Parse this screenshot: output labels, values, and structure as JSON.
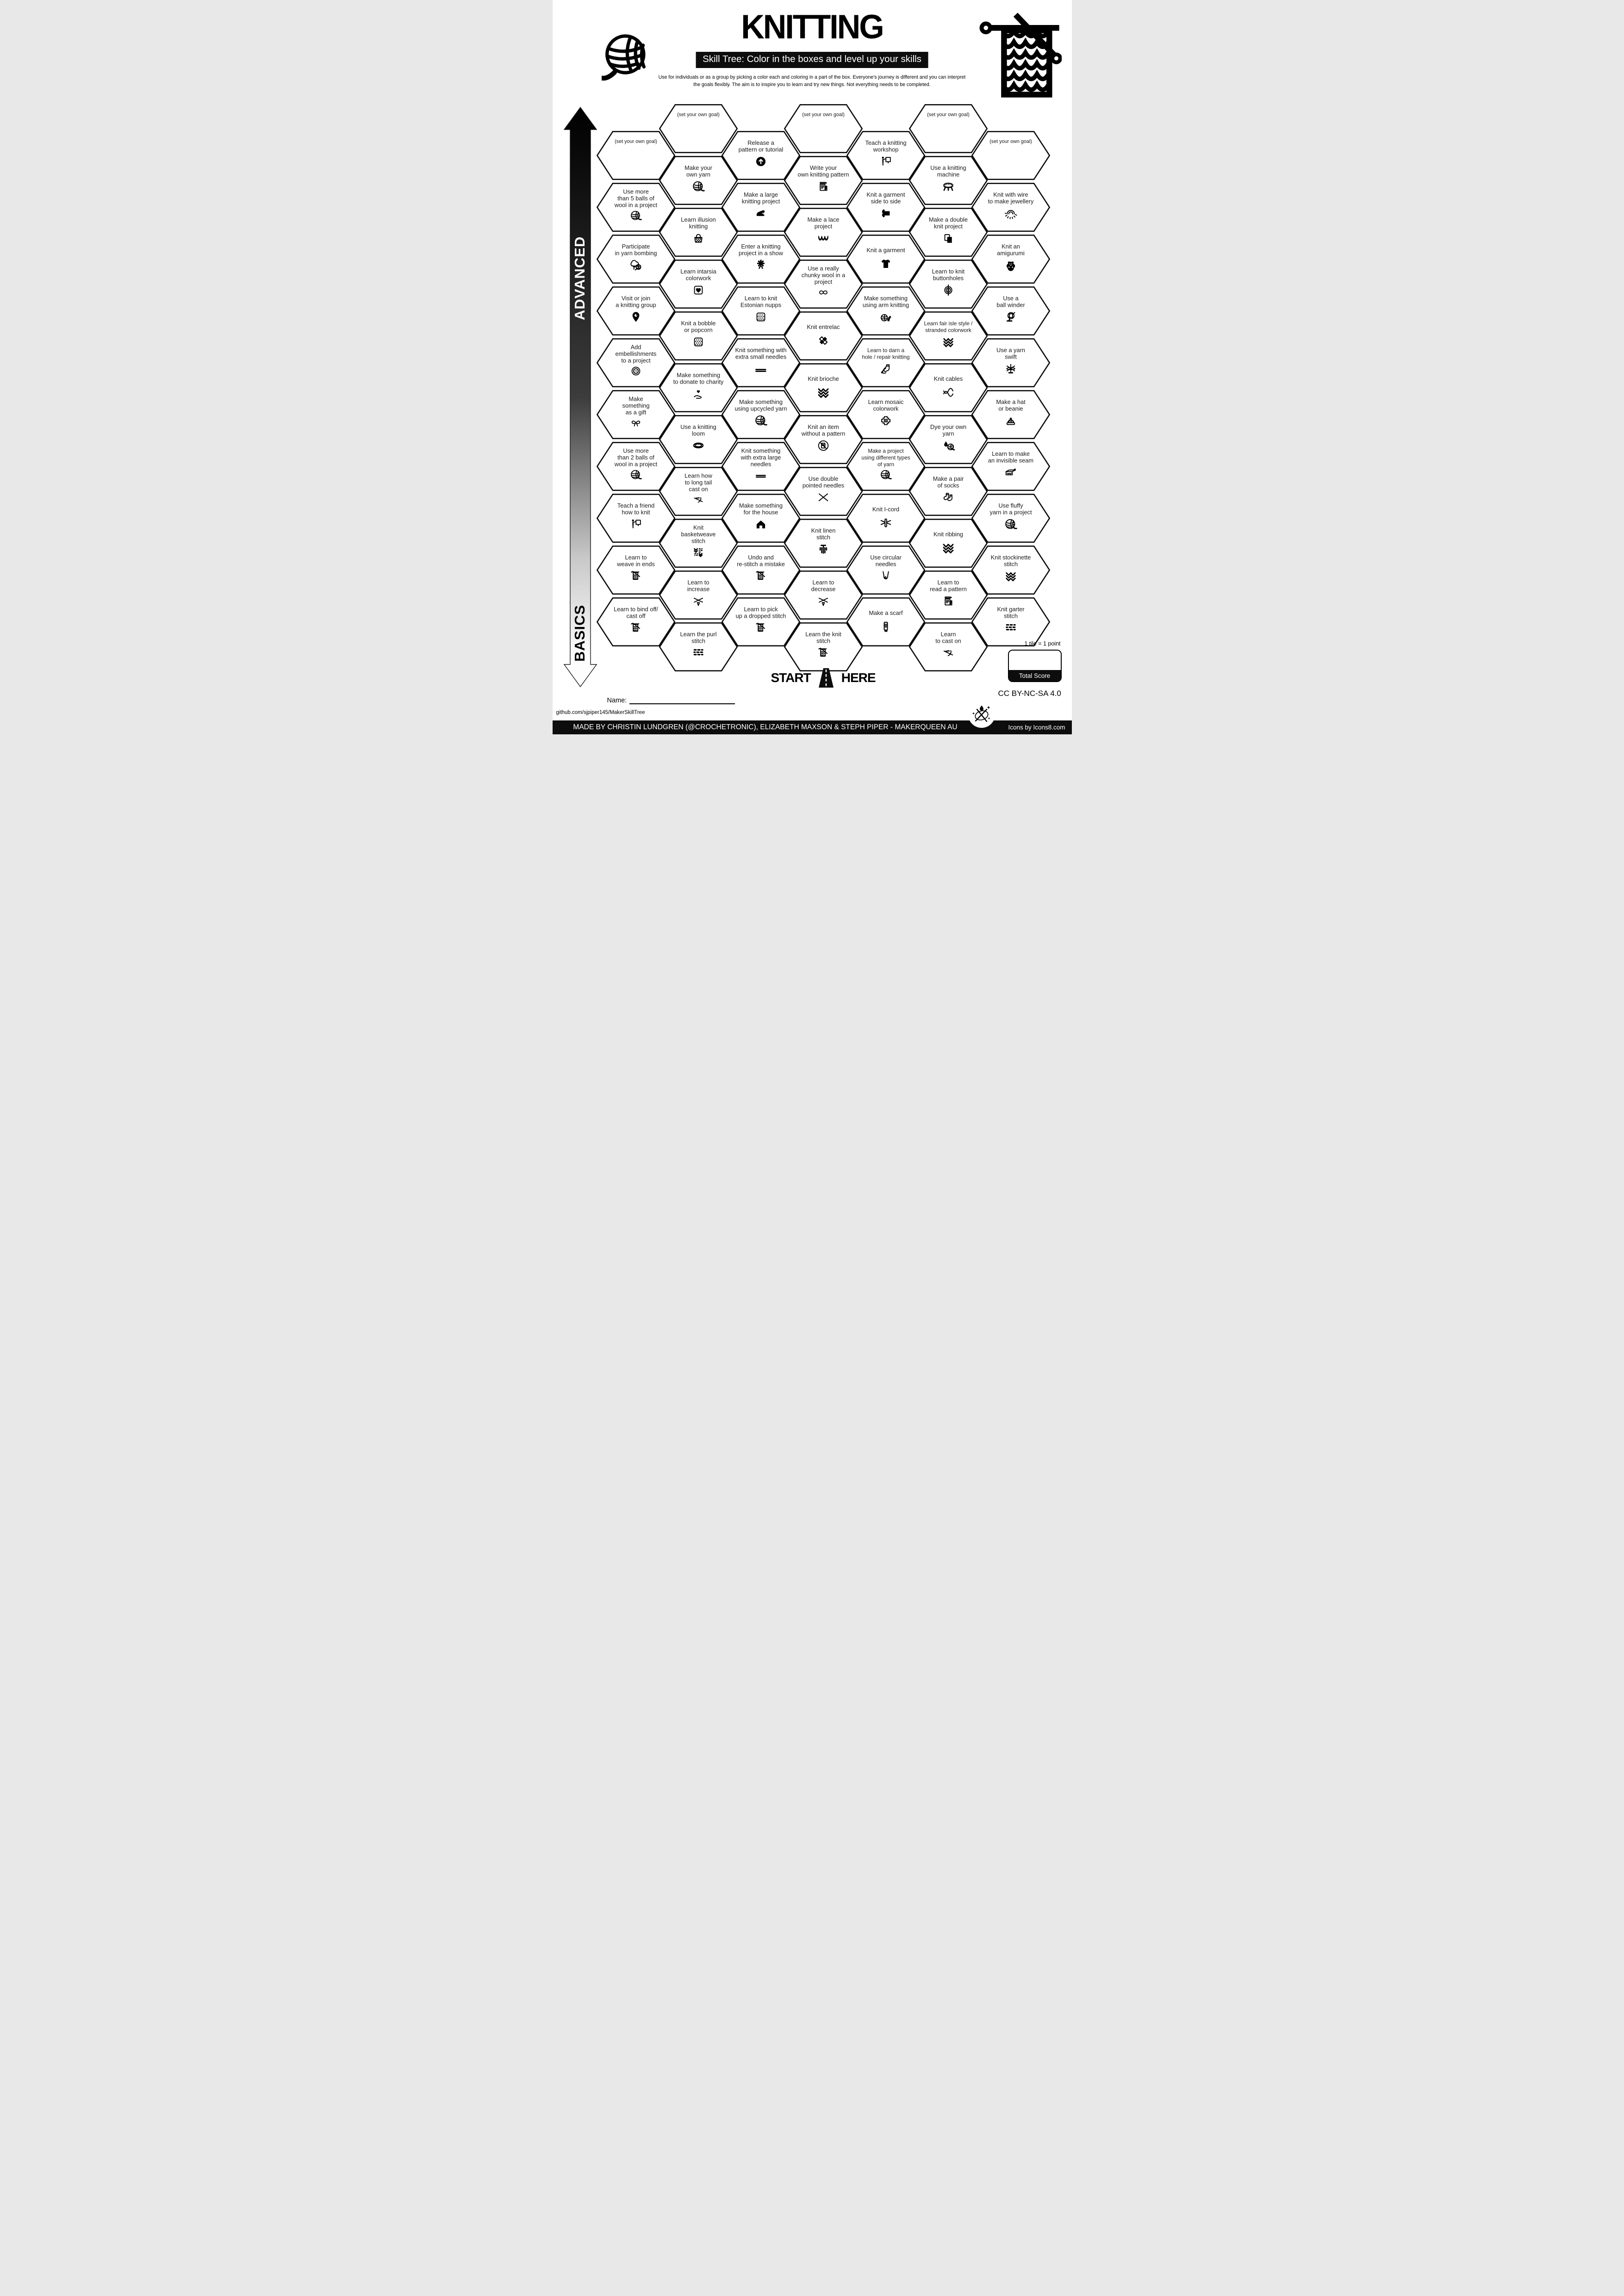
{
  "title": "KNITTING",
  "subtitle": "Skill Tree:  Color in the boxes and level up your skills",
  "description": "Use for individuals or as a group by picking a color each and coloring in a part of the box.  Everyone's journey is different and you can interpret the goals flexibly.  The aim is to inspire you to learn and try new things. Not everything needs to be completed.",
  "axis": {
    "advanced_label": "ADVANCED",
    "basics_label": "BASICS"
  },
  "start_here": {
    "start": "START",
    "here": "HERE"
  },
  "name_label": "Name:",
  "github_url": "github.com/sjpiper145/MakerSkillTree",
  "footer_credit": "MADE BY CHRISTIN LUNDGREN (@CROCHETRONIC), ELIZABETH MAXSON & STEPH PIPER  -  MAKERQUEEN AU",
  "icons_credit": "Icons by Icons8.com",
  "license": "CC BY-NC-SA 4.0",
  "scoring": {
    "tile_note": "1 tile = 1 point",
    "total_label": "Total Score"
  },
  "colors": {
    "ink": "#000000",
    "paper": "#ffffff"
  },
  "hexagons": [
    {
      "col": 0,
      "row": 0,
      "goal": true,
      "label": "(set your own goal)",
      "icon": null
    },
    {
      "col": 0,
      "row": 1,
      "label": "Use more\nthan 5 balls of\nwool in a project",
      "icon": "yarn-ball"
    },
    {
      "col": 0,
      "row": 2,
      "label": "Participate\nin yarn bombing",
      "icon": "tree-yarn"
    },
    {
      "col": 0,
      "row": 3,
      "label": "Visit or join\na knitting group",
      "icon": "map-pin"
    },
    {
      "col": 0,
      "row": 4,
      "label": "Add\nembellishments\nto a project",
      "icon": "button"
    },
    {
      "col": 0,
      "row": 5,
      "label": "Make\nsomething\nas a gift",
      "icon": "gift-bow"
    },
    {
      "col": 0,
      "row": 6,
      "label": "Use more\nthan 2 balls of\nwool in a project",
      "icon": "yarn-ball"
    },
    {
      "col": 0,
      "row": 7,
      "label": "Teach a friend\nhow to knit",
      "icon": "person-board"
    },
    {
      "col": 0,
      "row": 8,
      "label": "Learn to\nweave in ends",
      "icon": "swatch-needle"
    },
    {
      "col": 0,
      "row": 9,
      "label": "Learn to bind off/\ncast off",
      "icon": "swatch-needle"
    },
    {
      "col": 1,
      "row": 0,
      "goal": true,
      "label": "(set your own goal)",
      "icon": null
    },
    {
      "col": 1,
      "row": 1,
      "label": "Make your\nown yarn",
      "icon": "yarn-ball"
    },
    {
      "col": 1,
      "row": 2,
      "label": "Learn illusion\nknitting",
      "icon": "basket"
    },
    {
      "col": 1,
      "row": 3,
      "label": "Learn intarsia\ncolorwork",
      "icon": "heart-square"
    },
    {
      "col": 1,
      "row": 4,
      "label": "Knit a bobble\nor popcorn",
      "icon": "dots-square"
    },
    {
      "col": 1,
      "row": 5,
      "label": "Make something\nto donate to charity",
      "icon": "hand-heart"
    },
    {
      "col": 1,
      "row": 6,
      "label": "Use a knitting\nloom",
      "icon": "loom"
    },
    {
      "col": 1,
      "row": 7,
      "label": "Learn how\nto long tail\ncast on",
      "icon": "cast-on"
    },
    {
      "col": 1,
      "row": 8,
      "label": "Knit\nbasketweave\nstitch",
      "icon": "basketweave"
    },
    {
      "col": 1,
      "row": 9,
      "label": "Learn to\nincrease",
      "icon": "needles-v"
    },
    {
      "col": 1,
      "row": 10,
      "label": "Learn the purl\nstitch",
      "icon": "bricks"
    },
    {
      "col": 2,
      "row": 0,
      "label": "Release a\npattern or tutorial",
      "icon": "up-circle"
    },
    {
      "col": 2,
      "row": 1,
      "label": "Make a large\nknitting project",
      "icon": "blanket"
    },
    {
      "col": 2,
      "row": 2,
      "label": "Enter a knitting\nproject in a show",
      "icon": "award"
    },
    {
      "col": 2,
      "row": 3,
      "label": "Learn to knit\nEstonian nupps",
      "icon": "dots-square"
    },
    {
      "col": 2,
      "row": 4,
      "label": "Knit something with\nextra small needles",
      "icon": "needles-2"
    },
    {
      "col": 2,
      "row": 5,
      "label": "Make something\nusing upcycled yarn",
      "icon": "yarn-ball"
    },
    {
      "col": 2,
      "row": 6,
      "label": "Knit something\nwith extra large\nneedles",
      "icon": "needles-2"
    },
    {
      "col": 2,
      "row": 7,
      "label": "Make something\nfor the house",
      "icon": "house"
    },
    {
      "col": 2,
      "row": 8,
      "label": "Undo and\nre-stitch a mistake",
      "icon": "swatch-needle"
    },
    {
      "col": 2,
      "row": 9,
      "label": "Learn to pick\nup a dropped stitch",
      "icon": "swatch-needle"
    },
    {
      "col": 3,
      "row": 0,
      "goal": true,
      "label": "(set your own goal)",
      "icon": null
    },
    {
      "col": 3,
      "row": 1,
      "label": "Write your\nown knitting pattern",
      "icon": "doc"
    },
    {
      "col": 3,
      "row": 2,
      "label": "Make a lace\nproject",
      "icon": "lace"
    },
    {
      "col": 3,
      "row": 3,
      "label": "Use a really\nchunky wool in a\nproject",
      "icon": "knot"
    },
    {
      "col": 3,
      "row": 4,
      "label": "Knit entrelac",
      "icon": "entrelac"
    },
    {
      "col": 3,
      "row": 5,
      "label": "Knit brioche",
      "icon": "chevrons"
    },
    {
      "col": 3,
      "row": 6,
      "label": "Knit an item\nwithout a pattern",
      "icon": "no-doc"
    },
    {
      "col": 3,
      "row": 7,
      "label": "Use double\npointed needles",
      "icon": "needles-x"
    },
    {
      "col": 3,
      "row": 8,
      "label": "Knit linen\nstitch",
      "icon": "linen"
    },
    {
      "col": 3,
      "row": 9,
      "label": "Learn to\ndecrease",
      "icon": "needles-v"
    },
    {
      "col": 3,
      "row": 10,
      "label": "Learn the knit\nstitch",
      "icon": "swatch-needle"
    },
    {
      "col": 4,
      "row": 0,
      "label": "Teach a knitting\nworkshop",
      "icon": "person-board"
    },
    {
      "col": 4,
      "row": 1,
      "label": "Knit a garment\nside to side",
      "icon": "tee-side"
    },
    {
      "col": 4,
      "row": 2,
      "label": "Knit a garment",
      "icon": "tee"
    },
    {
      "col": 4,
      "row": 3,
      "label": "Make something\nusing arm knitting",
      "icon": "arm-yarn"
    },
    {
      "col": 4,
      "row": 4,
      "label": "Learn to darn a\nhole / repair knitting",
      "icon": "darn"
    },
    {
      "col": 4,
      "row": 5,
      "label": "Learn mosaic\ncolorwork",
      "icon": "mosaic"
    },
    {
      "col": 4,
      "row": 6,
      "label": "Make a project\nusing different types\nof yarn",
      "icon": "yarn-ball"
    },
    {
      "col": 4,
      "row": 7,
      "label": "Knit I-cord",
      "icon": "icord"
    },
    {
      "col": 4,
      "row": 8,
      "label": "Use circular\nneedles",
      "icon": "circular"
    },
    {
      "col": 4,
      "row": 9,
      "label": "Make a scarf",
      "icon": "scarf"
    },
    {
      "col": 5,
      "row": 0,
      "goal": true,
      "label": "(set your own goal)",
      "icon": null
    },
    {
      "col": 5,
      "row": 1,
      "label": "Use a knitting\nmachine",
      "icon": "machine"
    },
    {
      "col": 5,
      "row": 2,
      "label": "Make a double\nknit project",
      "icon": "double-knit"
    },
    {
      "col": 5,
      "row": 3,
      "label": "Learn to knit\nbuttonholes",
      "icon": "button-v"
    },
    {
      "col": 5,
      "row": 4,
      "label": "Learn fair isle style /\nstranded colorwork",
      "icon": "chevrons"
    },
    {
      "col": 5,
      "row": 5,
      "label": "Knit cables",
      "icon": "cables"
    },
    {
      "col": 5,
      "row": 6,
      "label": "Dye your own\nyarn",
      "icon": "dye"
    },
    {
      "col": 5,
      "row": 7,
      "label": "Make a pair\nof socks",
      "icon": "socks"
    },
    {
      "col": 5,
      "row": 8,
      "label": "Knit ribbing",
      "icon": "chevrons"
    },
    {
      "col": 5,
      "row": 9,
      "label": "Learn to\nread a pattern",
      "icon": "doc"
    },
    {
      "col": 5,
      "row": 10,
      "label": "Learn\nto cast on",
      "icon": "cast-on"
    },
    {
      "col": 6,
      "row": 0,
      "goal": true,
      "label": "(set your own goal)",
      "icon": null
    },
    {
      "col": 6,
      "row": 1,
      "label": "Knit with wire\nto make jewellery",
      "icon": "wire-sun"
    },
    {
      "col": 6,
      "row": 2,
      "label": "Knit an\namigurumi",
      "icon": "bear"
    },
    {
      "col": 6,
      "row": 3,
      "label": "Use a\nball winder",
      "icon": "winder"
    },
    {
      "col": 6,
      "row": 4,
      "label": "Use a yarn\nswift",
      "icon": "swift"
    },
    {
      "col": 6,
      "row": 5,
      "label": "Make a hat\nor beanie",
      "icon": "hat"
    },
    {
      "col": 6,
      "row": 6,
      "label": "Learn to make\nan invisible seam",
      "icon": "seam"
    },
    {
      "col": 6,
      "row": 7,
      "label": "Use fluffy\nyarn in a project",
      "icon": "yarn-ball"
    },
    {
      "col": 6,
      "row": 8,
      "label": "Knit stockinette\nstitch",
      "icon": "chevrons"
    },
    {
      "col": 6,
      "row": 9,
      "label": "Knit garter\nstitch",
      "icon": "bricks"
    }
  ]
}
